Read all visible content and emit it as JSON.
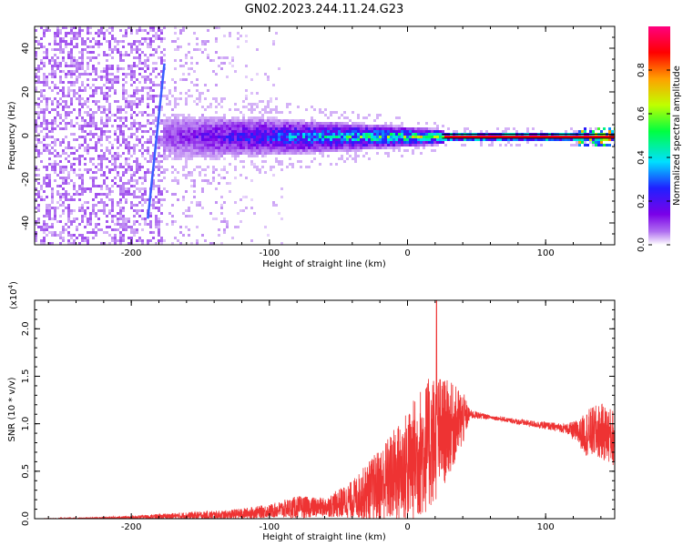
{
  "title": "GN02.2023.244.11.24.G23",
  "chart_data": [
    {
      "type": "heatmap",
      "xlabel": "Height of straight line (km)",
      "ylabel": "Frequency (Hz)",
      "xlim": [
        -270,
        150
      ],
      "ylim": [
        -50,
        50
      ],
      "xticks": [
        -200,
        -100,
        0,
        100
      ],
      "yticks": [
        -40,
        -20,
        0,
        20,
        40
      ],
      "xtick_labels": [
        "-200",
        "-100",
        "0",
        "100"
      ],
      "ytick_labels": [
        "-40",
        "-20",
        "0",
        "20",
        "40"
      ],
      "colorbar": {
        "label": "Normalized spectral amplitude",
        "range": [
          0,
          1
        ],
        "ticks": [
          0,
          0.2,
          0.4,
          0.6,
          0.8
        ],
        "tick_labels": [
          "0.0",
          "0.2",
          "0.4",
          "0.6",
          "0.8"
        ],
        "colormap": [
          "#ffffff",
          "#b070f0",
          "#7a00e8",
          "#2020ff",
          "#00e0ff",
          "#00ff40",
          "#c0ff00",
          "#ffa000",
          "#ff0000",
          "#ff0080"
        ]
      },
      "features": {
        "noise_region_x": [
          -270,
          -180
        ],
        "diagonal_streak": {
          "x": [
            -188,
            -176
          ],
          "y": [
            -38,
            33
          ]
        },
        "signal_band_center_hz": 0,
        "steady_tone_start_x": 25
      }
    },
    {
      "type": "line",
      "xlabel": "Height of straight line (km)",
      "ylabel": "SNR (10 * v/v)",
      "multiplier_label": "(x10",
      "multiplier_exp": "4",
      "multiplier_close": ")",
      "xlim": [
        -270,
        150
      ],
      "ylim": [
        0,
        2.3
      ],
      "xticks": [
        -200,
        -100,
        0,
        100
      ],
      "yticks": [
        0,
        0.5,
        1.0,
        1.5,
        2.0
      ],
      "xtick_labels": [
        "-200",
        "-100",
        "0",
        "100"
      ],
      "ytick_labels": [
        "0.0",
        "0.5",
        "1.0",
        "1.5",
        "2.0"
      ],
      "color": "#ee3333",
      "envelope": {
        "x": [
          -270,
          -240,
          -200,
          -160,
          -130,
          -100,
          -80,
          -60,
          -40,
          -20,
          0,
          10,
          20,
          30,
          40,
          45,
          60,
          80,
          100,
          115,
          125,
          130,
          140,
          150
        ],
        "mid": [
          0.0,
          0.0,
          0.01,
          0.03,
          0.04,
          0.08,
          0.12,
          0.12,
          0.2,
          0.35,
          0.55,
          0.7,
          0.85,
          0.95,
          1.05,
          1.1,
          1.07,
          1.02,
          0.98,
          0.95,
          0.9,
          0.9,
          0.92,
          0.85
        ],
        "amp": [
          0.0,
          0.01,
          0.02,
          0.04,
          0.05,
          0.07,
          0.12,
          0.1,
          0.2,
          0.4,
          0.6,
          0.7,
          0.7,
          0.5,
          0.3,
          0.05,
          0.02,
          0.03,
          0.04,
          0.05,
          0.15,
          0.25,
          0.3,
          0.3
        ]
      },
      "peak": {
        "x": 21,
        "y": 2.3
      }
    }
  ]
}
